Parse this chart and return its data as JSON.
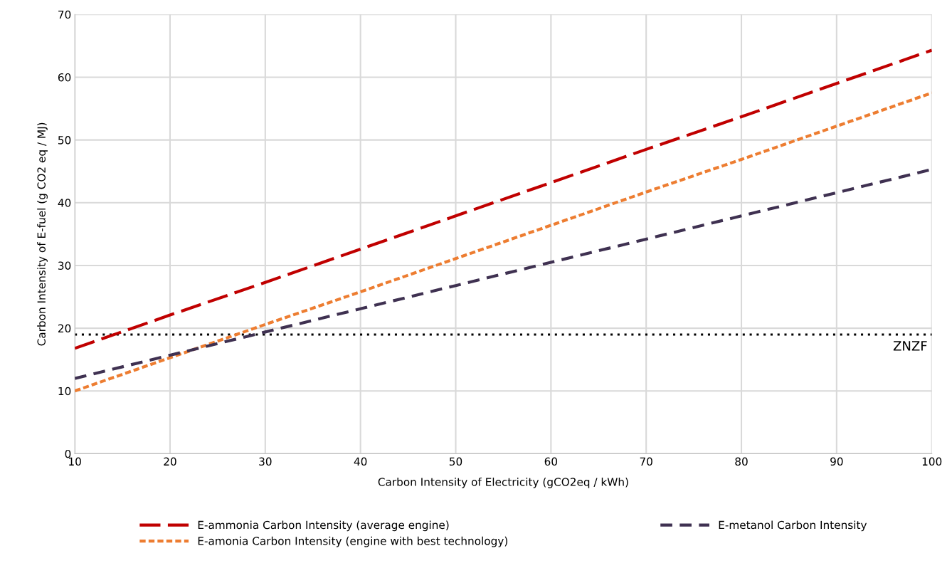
{
  "chart_data": {
    "type": "line",
    "xlabel": "Carbon Intensity of Electricity (gCO2eq / kWh)",
    "ylabel": "Carbon Intensity of E-fuel (g CO2 eq / MJ)",
    "x": [
      10,
      20,
      30,
      40,
      50,
      60,
      70,
      80,
      90,
      100
    ],
    "series": [
      {
        "name": "E-ammonia Carbon Intensity (average engine)",
        "color": "#c00000",
        "line_style": "dashed",
        "values": [
          16.8,
          22.1,
          27.3,
          32.6,
          37.9,
          43.2,
          48.5,
          53.7,
          59.0,
          64.3
        ]
      },
      {
        "name": "E-amonia Carbon Intensity (engine with best technology)",
        "color": "#ed7d31",
        "line_style": "dotted",
        "values": [
          10.0,
          15.3,
          20.6,
          25.8,
          31.1,
          36.4,
          41.7,
          46.9,
          52.2,
          57.5
        ]
      },
      {
        "name": "E-metanol Carbon Intensity",
        "color": "#3f3151",
        "line_style": "dashed",
        "values": [
          12.0,
          15.7,
          19.4,
          23.1,
          26.8,
          30.5,
          34.2,
          37.9,
          41.6,
          45.3
        ]
      }
    ],
    "xlim": [
      10,
      100
    ],
    "xticks": [
      10,
      20,
      30,
      40,
      50,
      60,
      70,
      80,
      90,
      100
    ],
    "ylim": [
      0,
      70
    ],
    "yticks": [
      0,
      10,
      20,
      30,
      40,
      50,
      60,
      70
    ],
    "ref_lines": [
      {
        "axis": "y",
        "value": 19,
        "label": "ZNZF",
        "color": "#000000",
        "line_style": "dotted"
      }
    ],
    "grid": true,
    "legend": "bottom",
    "marker": "none"
  }
}
